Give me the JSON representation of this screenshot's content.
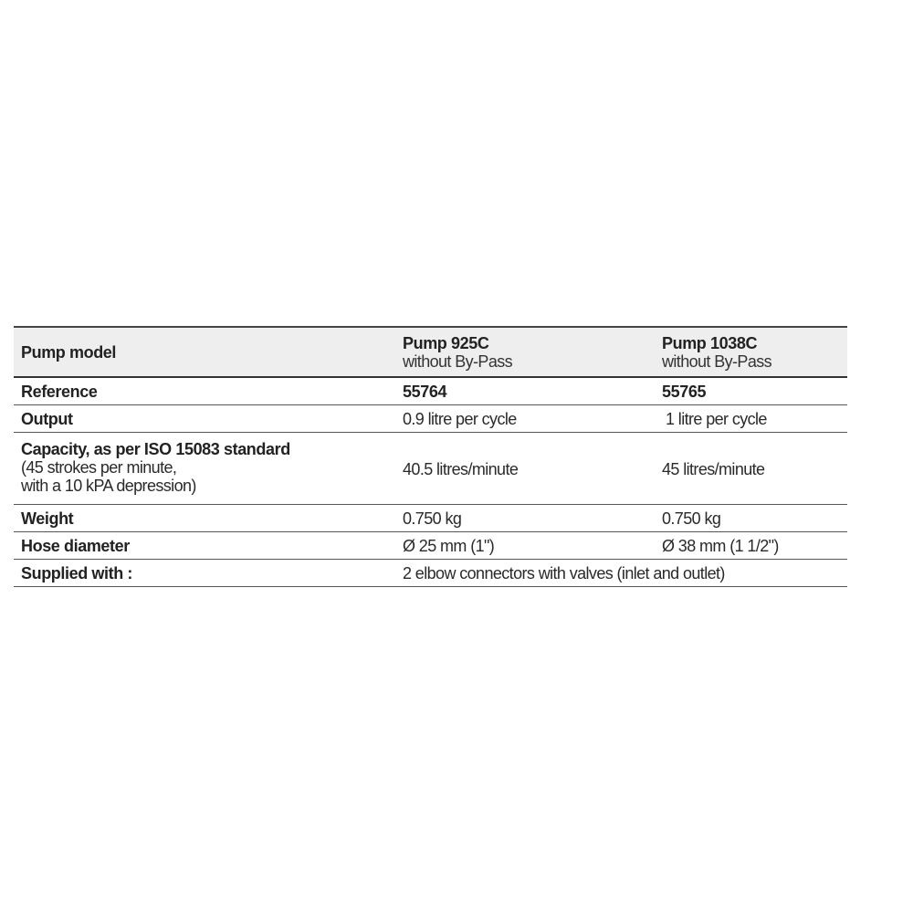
{
  "table": {
    "header": {
      "label": "Pump model",
      "models": [
        {
          "name": "Pump 925C",
          "variant": "without By-Pass"
        },
        {
          "name": "Pump 1038C",
          "variant": "without By-Pass"
        }
      ]
    },
    "reference": {
      "label": "Reference",
      "values": [
        "55764",
        "55765"
      ]
    },
    "output": {
      "label": "Output",
      "values": [
        "0.9 litre per cycle",
        "1 litre per cycle"
      ]
    },
    "capacity": {
      "label": "Capacity, as per ISO 15083 standard",
      "note_line1": "(45 strokes per minute,",
      "note_line2": "with a 10 kPA depression)",
      "values": [
        "40.5 litres/minute",
        "45 litres/minute"
      ]
    },
    "weight": {
      "label": "Weight",
      "values": [
        "0.750 kg",
        "0.750 kg"
      ]
    },
    "hose": {
      "label": "Hose diameter",
      "values": [
        "Ø 25 mm (1\")",
        "Ø 38 mm (1 1/2\")"
      ]
    },
    "supplied": {
      "label": "Supplied with :",
      "value": "2 elbow connectors with valves (inlet and outlet)"
    }
  }
}
